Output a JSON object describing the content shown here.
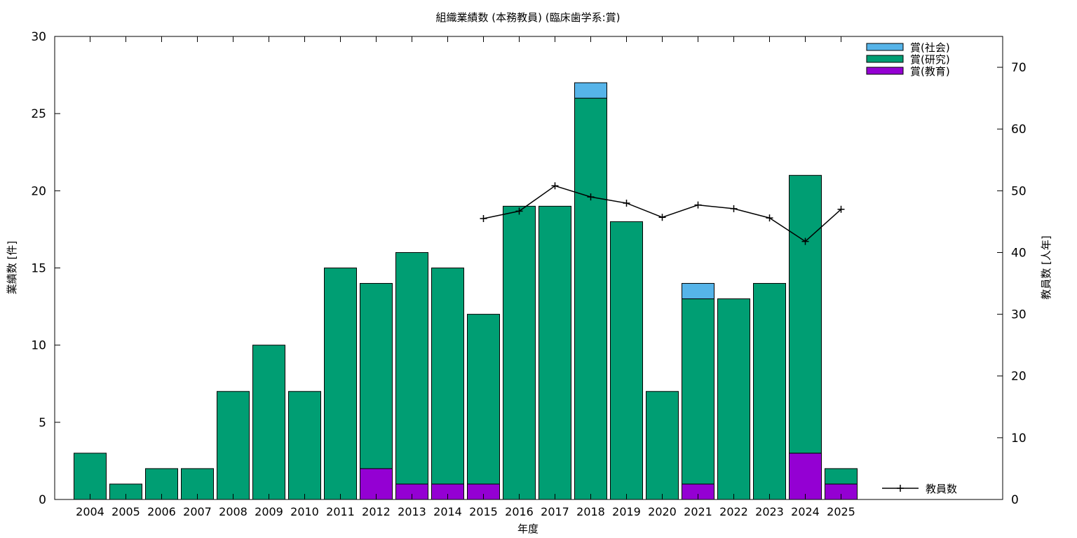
{
  "chart_data": {
    "type": "bar",
    "title": "組織業績数 (本務教員) (臨床歯学系:賞)",
    "xlabel": "年度",
    "ylabel": "業績数 [件]",
    "y2label": "教員数 [人年]",
    "ylim": [
      0,
      30
    ],
    "y2lim": [
      0,
      75
    ],
    "yticks": [
      "0",
      "5",
      "10",
      "15",
      "20",
      "25",
      "30"
    ],
    "y2ticks": [
      "0",
      "10",
      "20",
      "30",
      "40",
      "50",
      "60",
      "70"
    ],
    "stacked": true,
    "grid": false,
    "legend_position": "top-right",
    "categories": [
      "2004",
      "2005",
      "2006",
      "2007",
      "2008",
      "2009",
      "2010",
      "2011",
      "2012",
      "2013",
      "2014",
      "2015",
      "2016",
      "2017",
      "2018",
      "2019",
      "2020",
      "2021",
      "2022",
      "2023",
      "2024",
      "2025"
    ],
    "series": [
      {
        "name": "賞(教育)",
        "color": "#9400d3",
        "values": [
          0,
          0,
          0,
          0,
          0,
          0,
          0,
          0,
          2,
          1,
          1,
          1,
          0,
          0,
          0,
          0,
          0,
          1,
          0,
          0,
          3,
          1
        ]
      },
      {
        "name": "賞(研究)",
        "color": "#009e73",
        "values": [
          3,
          1,
          2,
          2,
          7,
          10,
          7,
          15,
          12,
          15,
          14,
          11,
          19,
          19,
          26,
          18,
          7,
          12,
          13,
          14,
          18,
          1
        ]
      },
      {
        "name": "賞(社会)",
        "color": "#56b4e9",
        "values": [
          0,
          0,
          0,
          0,
          0,
          0,
          0,
          0,
          0,
          0,
          0,
          0,
          0,
          0,
          1,
          0,
          0,
          1,
          0,
          0,
          0,
          0
        ]
      }
    ],
    "line_series": {
      "name": "教員数",
      "axis": "right",
      "color": "#000000",
      "x": [
        "2015",
        "2016",
        "2017",
        "2018",
        "2019",
        "2020",
        "2021",
        "2022",
        "2023",
        "2024",
        "2025"
      ],
      "values": [
        45.5,
        46.7,
        50.8,
        49.0,
        48.0,
        45.7,
        47.7,
        47.1,
        45.6,
        41.8,
        47.0
      ]
    }
  }
}
